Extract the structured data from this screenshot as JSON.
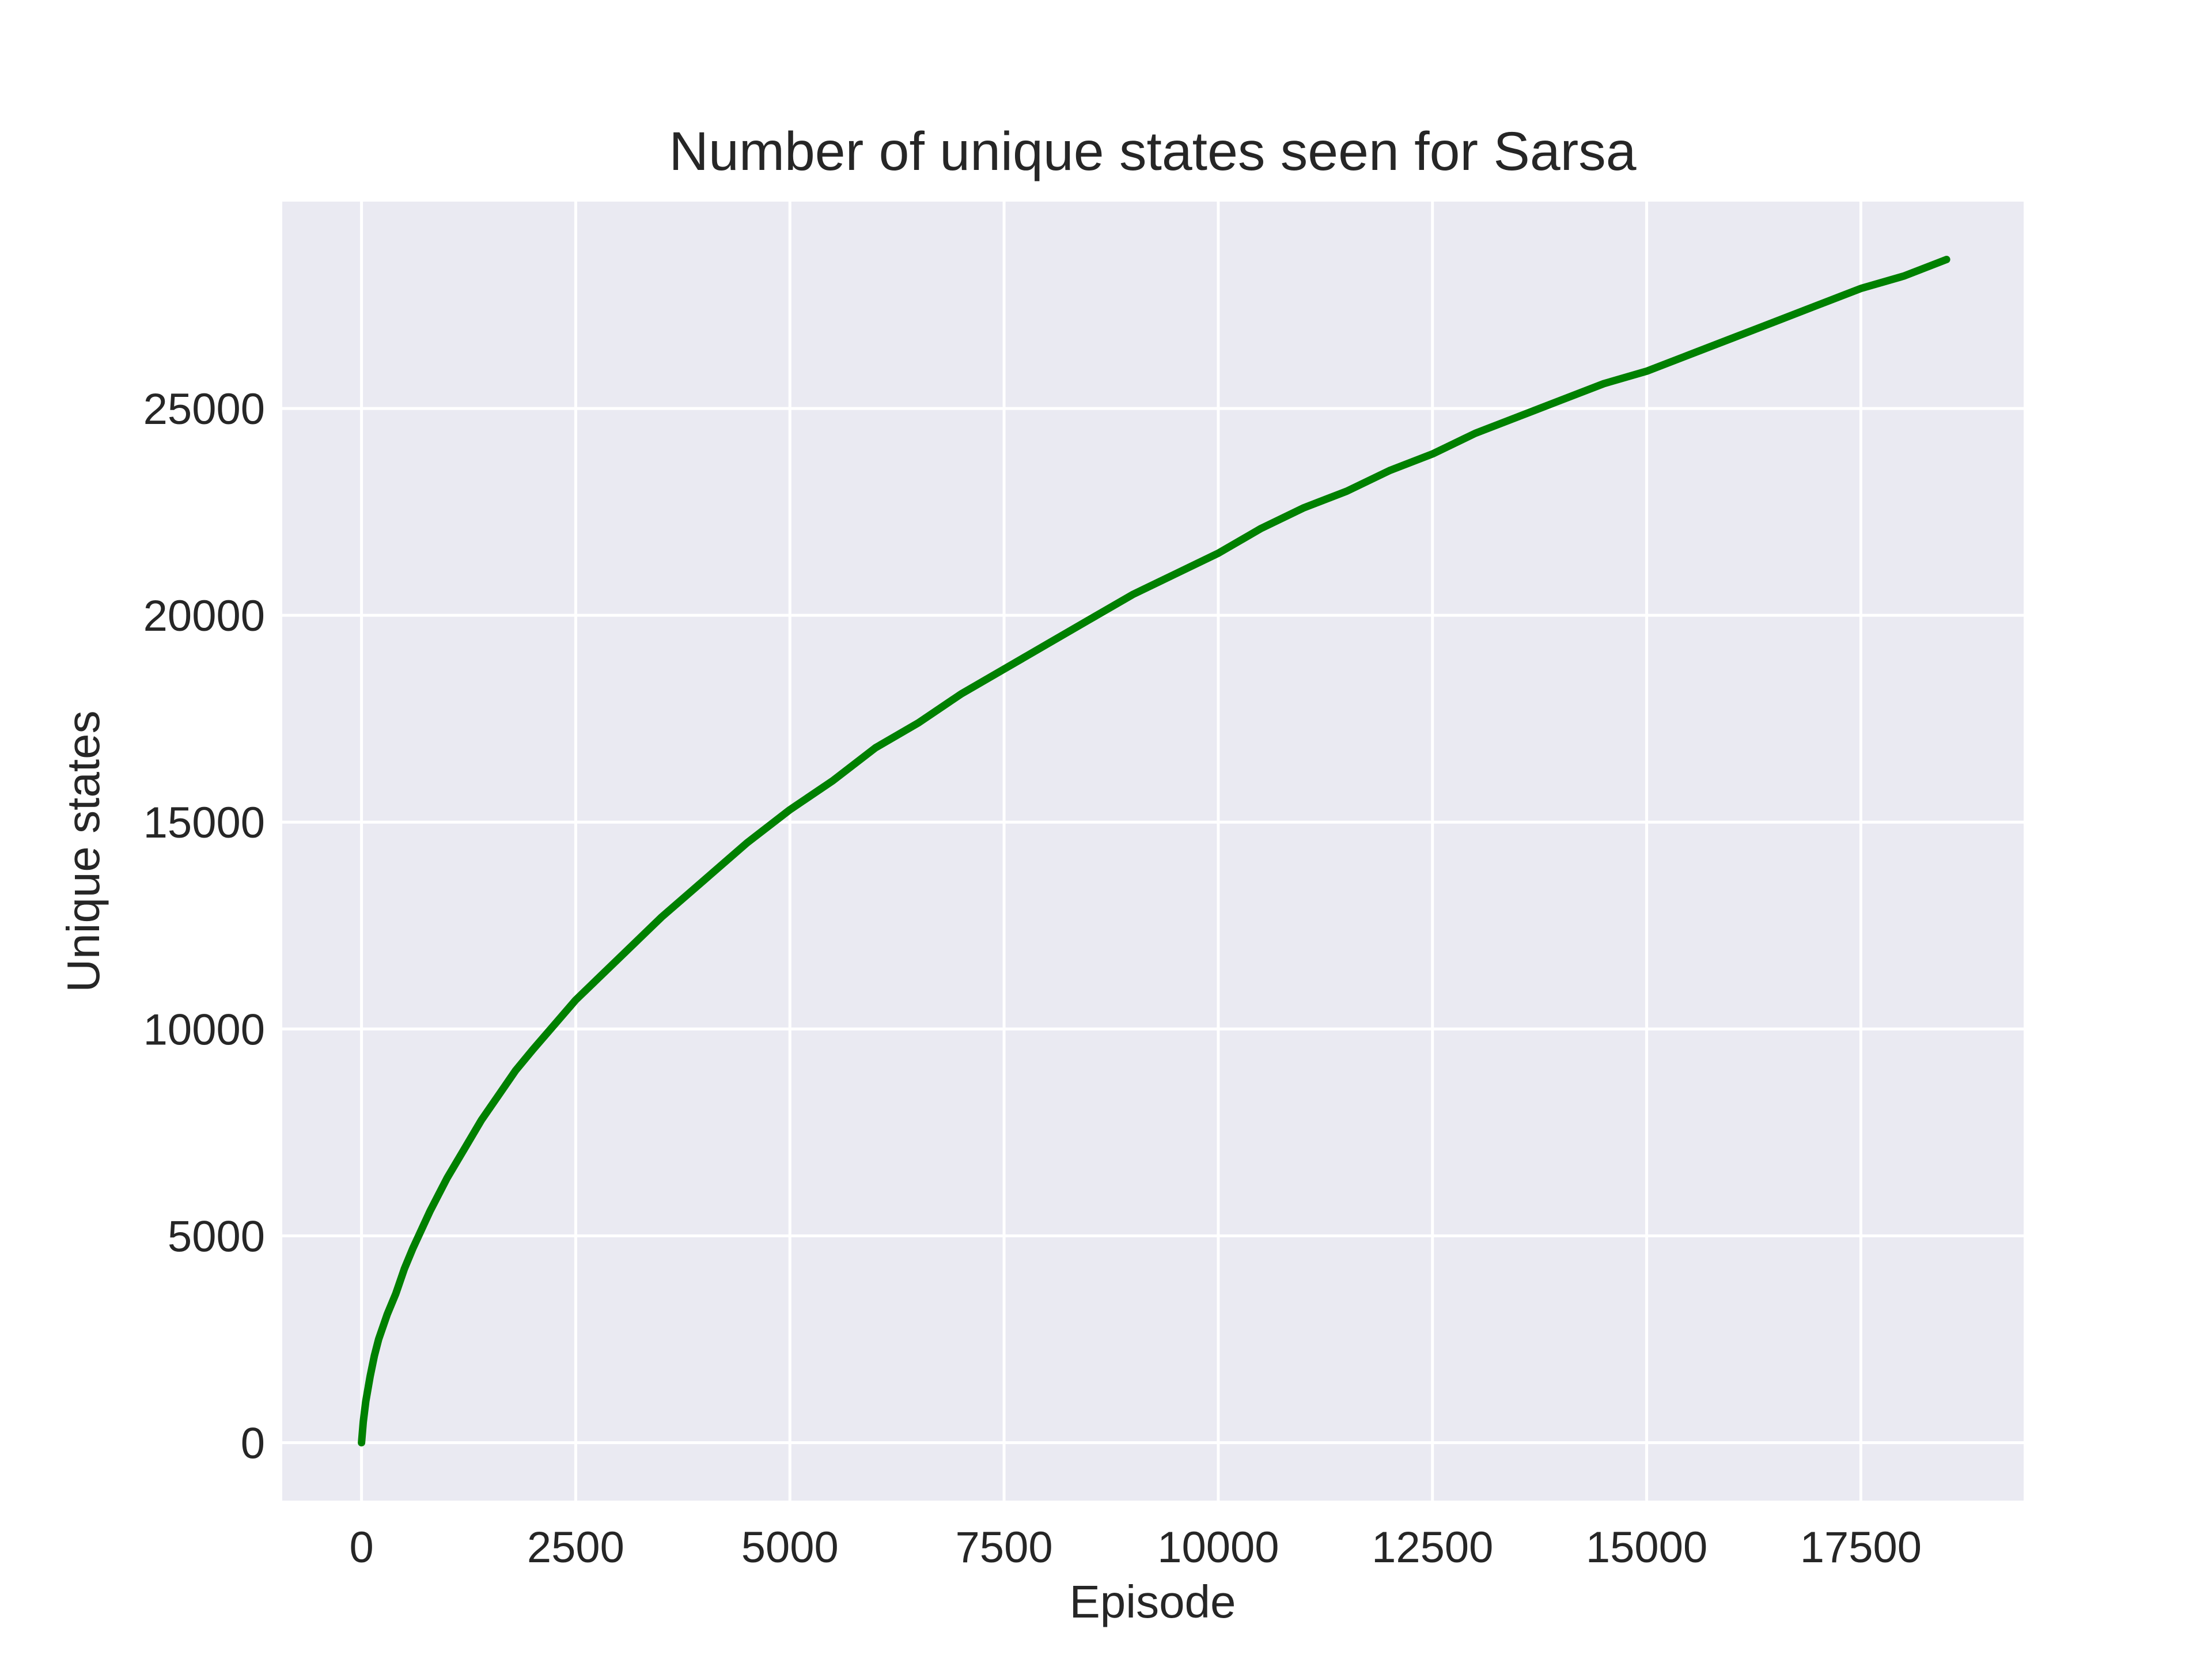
{
  "chart_data": {
    "type": "line",
    "title": "Number of unique states seen for Sarsa",
    "xlabel": "Episode",
    "ylabel": "Unique states",
    "xlim": [
      -925,
      19400
    ],
    "ylim": [
      -1400,
      30000
    ],
    "xticks": [
      0,
      2500,
      5000,
      7500,
      10000,
      12500,
      15000,
      17500
    ],
    "yticks": [
      0,
      5000,
      10000,
      15000,
      20000,
      25000
    ],
    "grid": true,
    "legend": "none",
    "colors": {
      "background": "#eaeaf2",
      "grid": "#ffffff",
      "series": "#008000"
    },
    "series": [
      {
        "x": [
          0,
          20,
          50,
          100,
          150,
          200,
          300,
          400,
          500,
          600,
          800,
          1000,
          1200,
          1400,
          1600,
          1800,
          2000,
          2250,
          2500,
          2750,
          3000,
          3500,
          4000,
          4500,
          5000,
          5500,
          6000,
          6500,
          7000,
          7500,
          8000,
          8500,
          9000,
          9500,
          10000,
          10500,
          11000,
          11500,
          12000,
          12500,
          13000,
          13500,
          14000,
          14500,
          15000,
          15500,
          16000,
          16500,
          17000,
          17500,
          18000,
          18500
        ],
        "y": [
          0,
          500,
          1000,
          1600,
          2100,
          2500,
          3100,
          3600,
          4200,
          4700,
          5600,
          6400,
          7100,
          7800,
          8400,
          9000,
          9500,
          10100,
          10700,
          11200,
          11700,
          12700,
          13600,
          14500,
          15300,
          16000,
          16800,
          17400,
          18100,
          18700,
          19300,
          19900,
          20500,
          21000,
          21500,
          22100,
          22600,
          23000,
          23500,
          23900,
          24400,
          24800,
          25200,
          25600,
          25900,
          26300,
          26700,
          27100,
          27500,
          27900,
          28200,
          28600
        ]
      }
    ]
  }
}
